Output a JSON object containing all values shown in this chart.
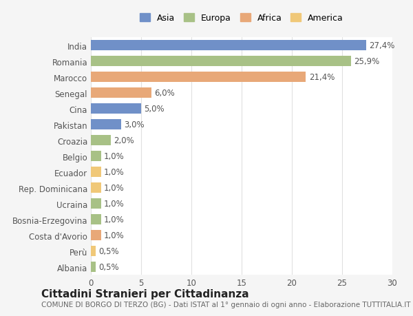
{
  "categories": [
    "Albania",
    "Perù",
    "Costa d'Avorio",
    "Bosnia-Erzegovina",
    "Ucraina",
    "Rep. Dominicana",
    "Ecuador",
    "Belgio",
    "Croazia",
    "Pakistan",
    "Cina",
    "Senegal",
    "Marocco",
    "Romania",
    "India"
  ],
  "values": [
    0.5,
    0.5,
    1.0,
    1.0,
    1.0,
    1.0,
    1.0,
    1.0,
    2.0,
    3.0,
    5.0,
    6.0,
    21.4,
    25.9,
    27.4
  ],
  "labels": [
    "0,5%",
    "0,5%",
    "1,0%",
    "1,0%",
    "1,0%",
    "1,0%",
    "1,0%",
    "1,0%",
    "2,0%",
    "3,0%",
    "5,0%",
    "6,0%",
    "21,4%",
    "25,9%",
    "27,4%"
  ],
  "colors": [
    "#a8c186",
    "#f0c878",
    "#e8a878",
    "#a8c186",
    "#a8c186",
    "#f0c878",
    "#f0c878",
    "#a8c186",
    "#a8c186",
    "#7090c8",
    "#7090c8",
    "#e8a878",
    "#e8a878",
    "#a8c186",
    "#7090c8"
  ],
  "legend_labels": [
    "Asia",
    "Europa",
    "Africa",
    "America"
  ],
  "legend_colors": [
    "#7090c8",
    "#a8c186",
    "#e8a878",
    "#f0c878"
  ],
  "title": "Cittadini Stranieri per Cittadinanza",
  "subtitle": "COMUNE DI BORGO DI TERZO (BG) - Dati ISTAT al 1° gennaio di ogni anno - Elaborazione TUTTITALIA.IT",
  "xlim": [
    0,
    30
  ],
  "xticks": [
    0,
    5,
    10,
    15,
    20,
    25,
    30
  ],
  "bar_height": 0.65,
  "background_color": "#f5f5f5",
  "plot_bg_color": "#ffffff",
  "grid_color": "#e0e0e0",
  "label_fontsize": 8.5,
  "tick_fontsize": 8.5,
  "title_fontsize": 11,
  "subtitle_fontsize": 7.5
}
